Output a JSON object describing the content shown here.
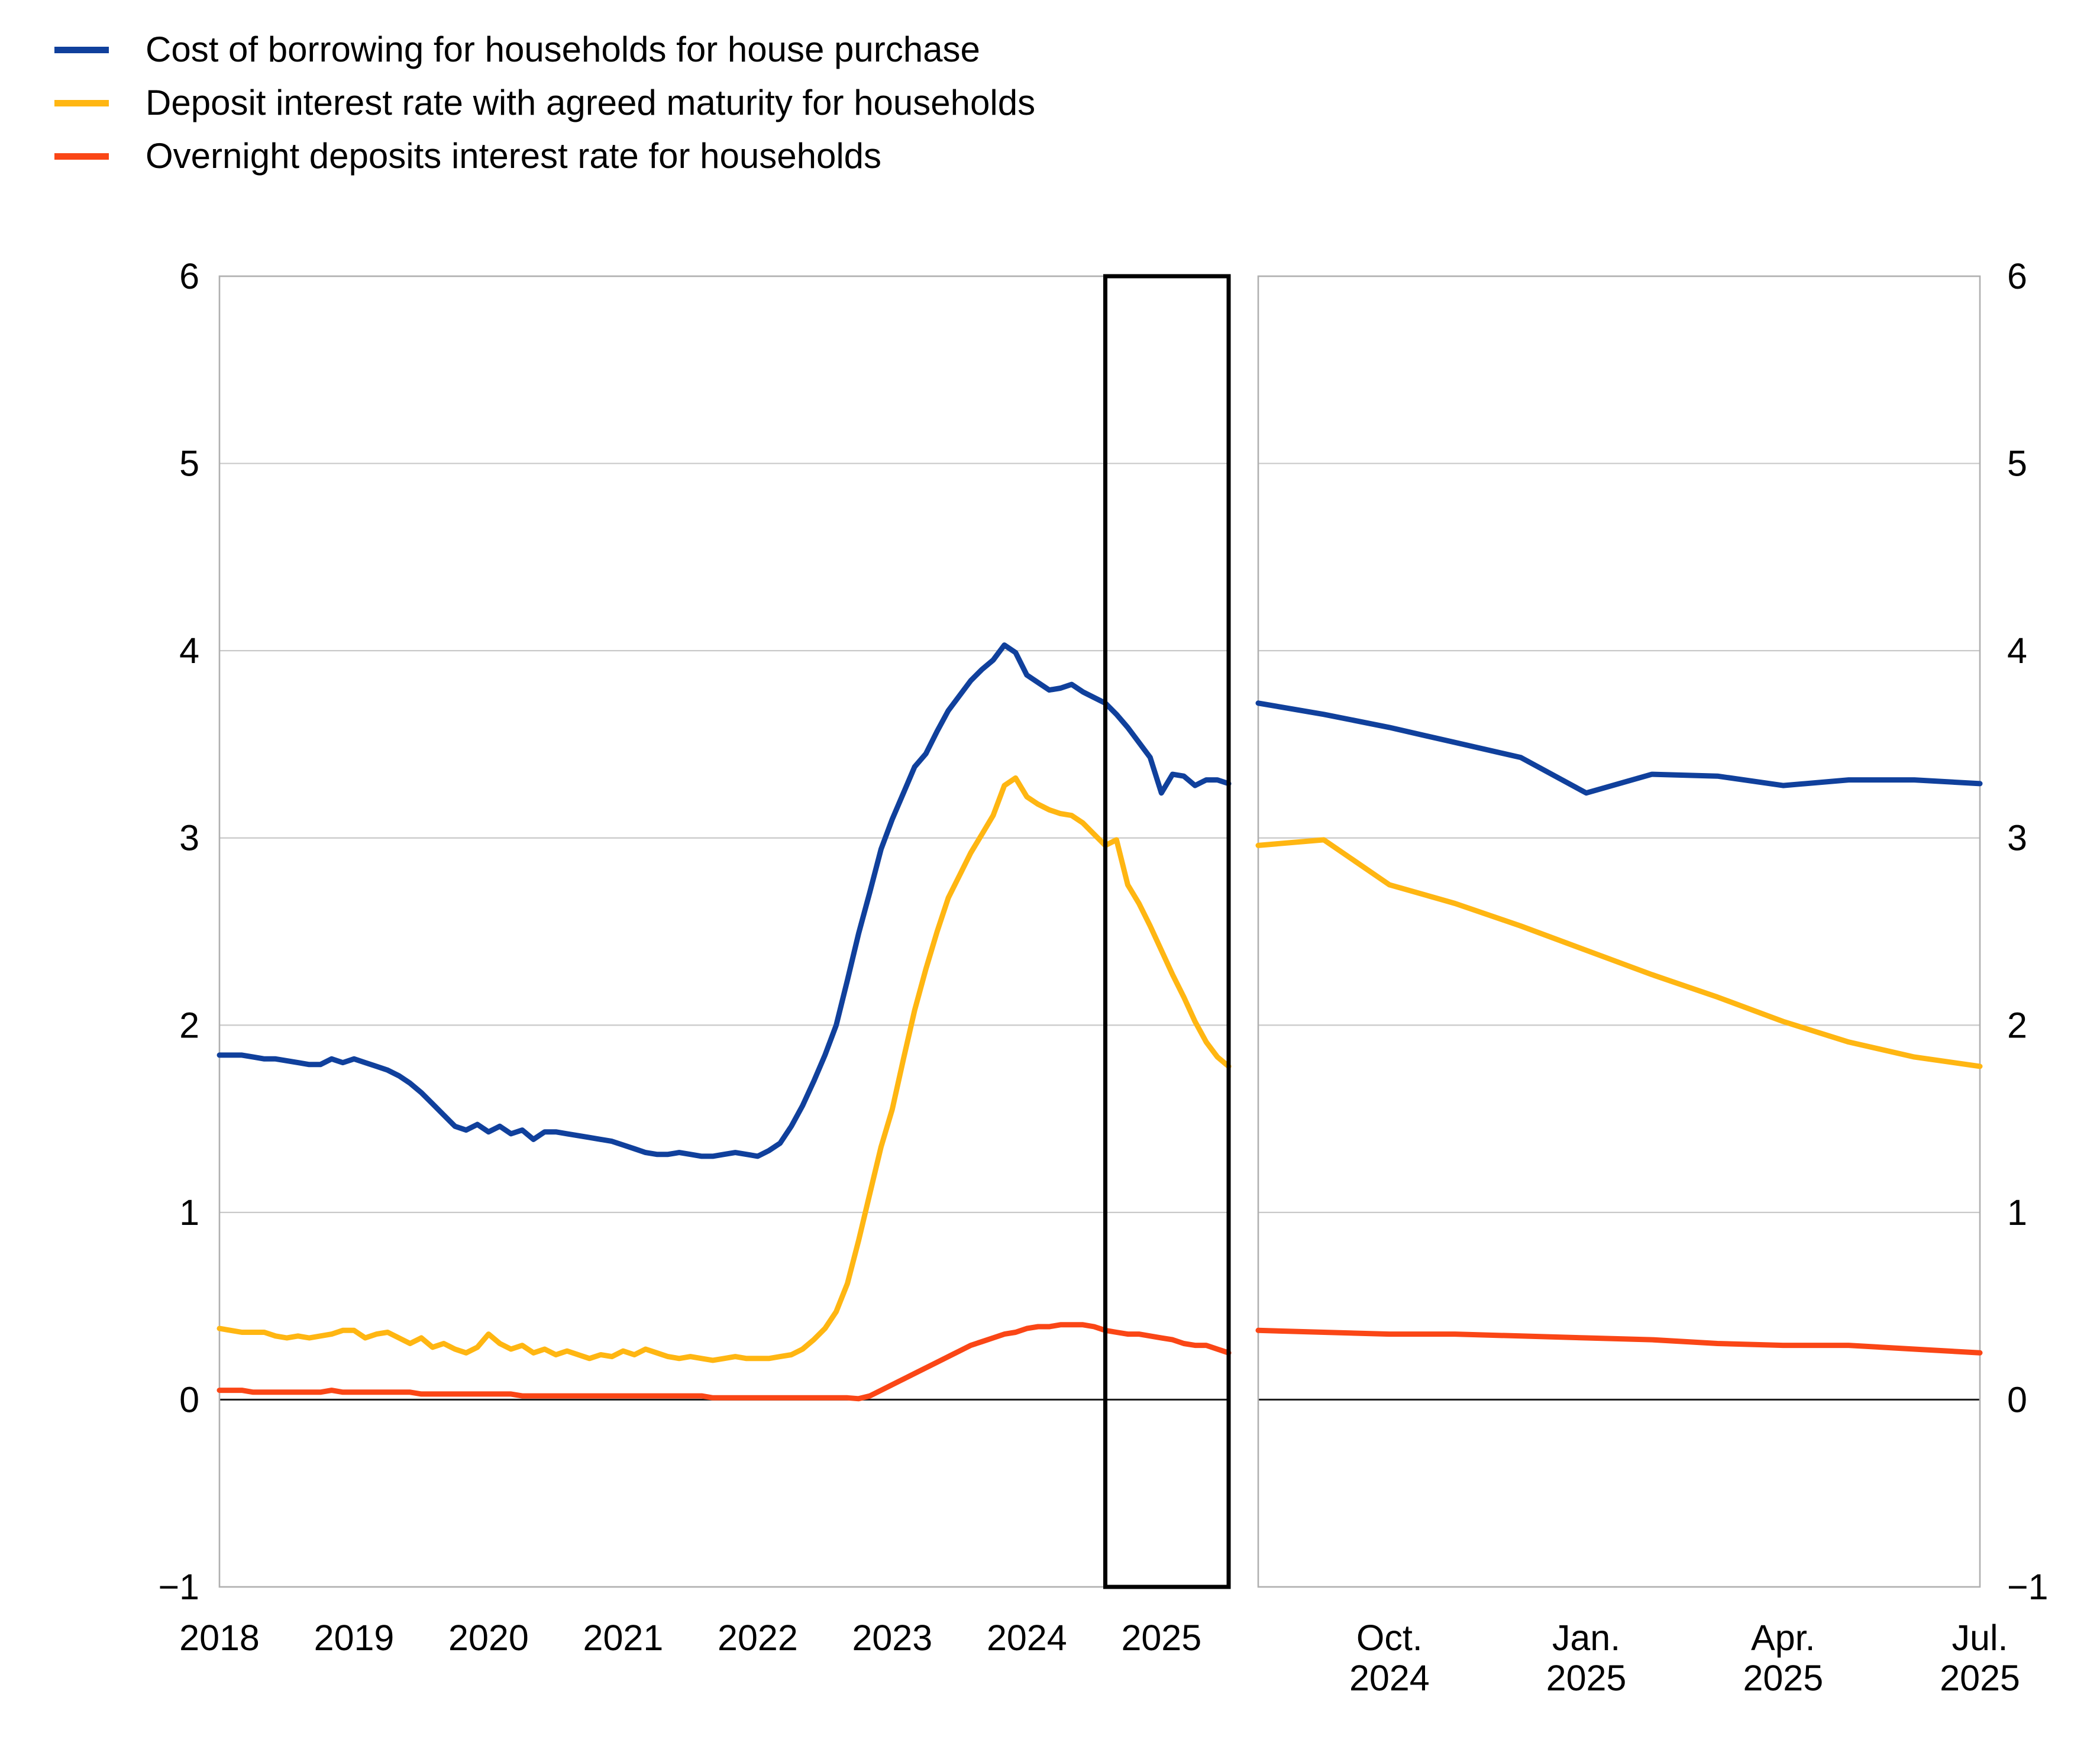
{
  "legend": {
    "items": [
      {
        "id": "cost-of-borrowing",
        "label": "Cost of borrowing for households for house purchase",
        "color": "#10409C"
      },
      {
        "id": "deposit-agreed-maturity",
        "label": "Deposit interest rate with agreed maturity for households",
        "color": "#FFB612"
      },
      {
        "id": "overnight-deposits",
        "label": "Overnight deposits interest rate for households",
        "color": "#FA4616"
      }
    ]
  },
  "chart_data": {
    "type": "line",
    "grid": "horizontal-on",
    "y_axis": {
      "min": -1,
      "max": 6,
      "tick_values": [
        6,
        5,
        4,
        3,
        2,
        1,
        0,
        -1
      ],
      "tick_labels": [
        "6",
        "5",
        "4",
        "3",
        "2",
        "1",
        "0",
        "−1"
      ],
      "zero_line": true,
      "labels_left_of_panel1": true,
      "labels_right_of_panel2": true
    },
    "panels": [
      {
        "id": "history",
        "x_start": "2018-01",
        "x_end": "2025-07",
        "frequency": "monthly",
        "x_tick_month_indices": [
          0,
          12,
          24,
          36,
          48,
          60,
          72,
          84
        ],
        "x_tick_labels": [
          "2018",
          "2019",
          "2020",
          "2021",
          "2022",
          "2023",
          "2024",
          "2025"
        ],
        "highlight_box": {
          "from_index": 79,
          "to_index": 90,
          "note": "window shown enlarged in right panel (Aug 2024 - Jul 2025)"
        },
        "series": [
          {
            "name": "Cost of borrowing for households for house purchase",
            "color": "#10409C",
            "values": [
              1.84,
              1.84,
              1.84,
              1.83,
              1.82,
              1.82,
              1.81,
              1.8,
              1.79,
              1.79,
              1.82,
              1.8,
              1.82,
              1.8,
              1.78,
              1.76,
              1.73,
              1.69,
              1.64,
              1.58,
              1.52,
              1.46,
              1.44,
              1.47,
              1.43,
              1.46,
              1.42,
              1.44,
              1.39,
              1.43,
              1.43,
              1.42,
              1.41,
              1.4,
              1.39,
              1.38,
              1.36,
              1.34,
              1.32,
              1.31,
              1.31,
              1.32,
              1.31,
              1.3,
              1.3,
              1.31,
              1.32,
              1.31,
              1.3,
              1.33,
              1.37,
              1.46,
              1.57,
              1.7,
              1.84,
              2.0,
              2.24,
              2.49,
              2.71,
              2.94,
              3.1,
              3.24,
              3.38,
              3.45,
              3.57,
              3.68,
              3.76,
              3.84,
              3.9,
              3.95,
              4.03,
              3.99,
              3.87,
              3.83,
              3.79,
              3.8,
              3.82,
              3.78,
              3.75,
              3.72,
              3.66,
              3.59,
              3.51,
              3.43,
              3.24,
              3.34,
              3.33,
              3.28,
              3.31,
              3.31,
              3.29
            ]
          },
          {
            "name": "Deposit interest rate with agreed maturity for households",
            "color": "#FFB612",
            "values": [
              0.38,
              0.37,
              0.36,
              0.36,
              0.36,
              0.34,
              0.33,
              0.34,
              0.33,
              0.34,
              0.35,
              0.37,
              0.37,
              0.33,
              0.35,
              0.36,
              0.33,
              0.3,
              0.33,
              0.28,
              0.3,
              0.27,
              0.25,
              0.28,
              0.35,
              0.3,
              0.27,
              0.29,
              0.25,
              0.27,
              0.24,
              0.26,
              0.24,
              0.22,
              0.24,
              0.23,
              0.26,
              0.24,
              0.27,
              0.25,
              0.23,
              0.22,
              0.23,
              0.22,
              0.21,
              0.22,
              0.23,
              0.22,
              0.22,
              0.22,
              0.23,
              0.24,
              0.27,
              0.32,
              0.38,
              0.47,
              0.62,
              0.85,
              1.1,
              1.35,
              1.55,
              1.82,
              2.08,
              2.3,
              2.5,
              2.68,
              2.8,
              2.92,
              3.02,
              3.12,
              3.28,
              3.32,
              3.22,
              3.18,
              3.15,
              3.13,
              3.12,
              3.08,
              3.02,
              2.96,
              2.99,
              2.75,
              2.65,
              2.53,
              2.4,
              2.27,
              2.15,
              2.02,
              1.91,
              1.83,
              1.78
            ]
          },
          {
            "name": "Overnight deposits interest rate for households",
            "color": "#FA4616",
            "values": [
              0.05,
              0.05,
              0.05,
              0.04,
              0.04,
              0.04,
              0.04,
              0.04,
              0.04,
              0.04,
              0.05,
              0.04,
              0.04,
              0.04,
              0.04,
              0.04,
              0.04,
              0.04,
              0.03,
              0.03,
              0.03,
              0.03,
              0.03,
              0.03,
              0.03,
              0.03,
              0.03,
              0.02,
              0.02,
              0.02,
              0.02,
              0.02,
              0.02,
              0.02,
              0.02,
              0.02,
              0.02,
              0.02,
              0.02,
              0.02,
              0.02,
              0.02,
              0.02,
              0.02,
              0.01,
              0.01,
              0.01,
              0.01,
              0.01,
              0.01,
              0.01,
              0.01,
              0.01,
              0.01,
              0.01,
              0.01,
              0.01,
              0.005,
              0.02,
              0.05,
              0.08,
              0.11,
              0.14,
              0.17,
              0.2,
              0.23,
              0.26,
              0.29,
              0.31,
              0.33,
              0.35,
              0.36,
              0.38,
              0.39,
              0.39,
              0.4,
              0.4,
              0.4,
              0.39,
              0.37,
              0.36,
              0.35,
              0.35,
              0.34,
              0.33,
              0.32,
              0.3,
              0.29,
              0.29,
              0.27,
              0.25
            ]
          }
        ]
      },
      {
        "id": "recent-zoom",
        "x_start": "2024-08",
        "x_end": "2025-07",
        "frequency": "monthly",
        "x_tick_month_indices": [
          2,
          5,
          8,
          11
        ],
        "x_tick_labels": [
          "Oct.|2024",
          "Jan.|2025",
          "Apr.|2025",
          "Jul.|2025"
        ],
        "series": [
          {
            "name": "Cost of borrowing for households for house purchase",
            "color": "#10409C",
            "values": [
              3.72,
              3.66,
              3.59,
              3.51,
              3.43,
              3.24,
              3.34,
              3.33,
              3.28,
              3.31,
              3.31,
              3.29
            ]
          },
          {
            "name": "Deposit interest rate with agreed maturity for households",
            "color": "#FFB612",
            "values": [
              2.96,
              2.99,
              2.75,
              2.65,
              2.53,
              2.4,
              2.27,
              2.15,
              2.02,
              1.91,
              1.83,
              1.78
            ]
          },
          {
            "name": "Overnight deposits interest rate for households",
            "color": "#FA4616",
            "values": [
              0.37,
              0.36,
              0.35,
              0.35,
              0.34,
              0.33,
              0.32,
              0.3,
              0.29,
              0.29,
              0.27,
              0.25
            ]
          }
        ]
      }
    ]
  }
}
